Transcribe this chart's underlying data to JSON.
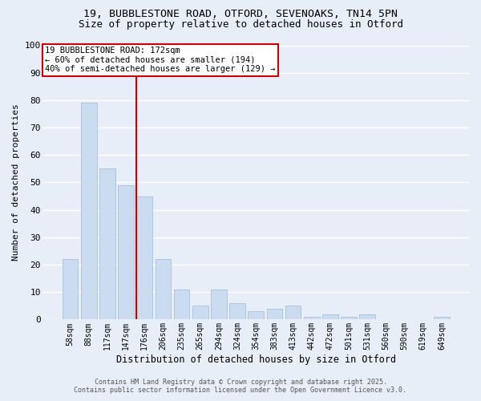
{
  "title1": "19, BUBBLESTONE ROAD, OTFORD, SEVENOAKS, TN14 5PN",
  "title2": "Size of property relative to detached houses in Otford",
  "xlabel": "Distribution of detached houses by size in Otford",
  "ylabel": "Number of detached properties",
  "bar_labels": [
    "58sqm",
    "88sqm",
    "117sqm",
    "147sqm",
    "176sqm",
    "206sqm",
    "235sqm",
    "265sqm",
    "294sqm",
    "324sqm",
    "354sqm",
    "383sqm",
    "413sqm",
    "442sqm",
    "472sqm",
    "501sqm",
    "531sqm",
    "560sqm",
    "590sqm",
    "619sqm",
    "649sqm"
  ],
  "bar_values": [
    22,
    79,
    55,
    49,
    45,
    22,
    11,
    5,
    11,
    6,
    3,
    4,
    5,
    1,
    2,
    1,
    2,
    0,
    0,
    0,
    1
  ],
  "bar_color": "#ccdcf0",
  "bar_edgecolor": "#a8c0dc",
  "vline_color": "#cc0000",
  "annotation_title": "19 BUBBLESTONE ROAD: 172sqm",
  "annotation_line2": "← 60% of detached houses are smaller (194)",
  "annotation_line3": "40% of semi-detached houses are larger (129) →",
  "annotation_box_color": "#ffffff",
  "annotation_box_edgecolor": "#cc0000",
  "ylim": [
    0,
    100
  ],
  "yticks": [
    0,
    10,
    20,
    30,
    40,
    50,
    60,
    70,
    80,
    90,
    100
  ],
  "footer1": "Contains HM Land Registry data © Crown copyright and database right 2025.",
  "footer2": "Contains public sector information licensed under the Open Government Licence v3.0.",
  "background_color": "#e8eef8",
  "grid_color": "#ffffff",
  "title1_fontsize": 9.5,
  "title2_fontsize": 9
}
